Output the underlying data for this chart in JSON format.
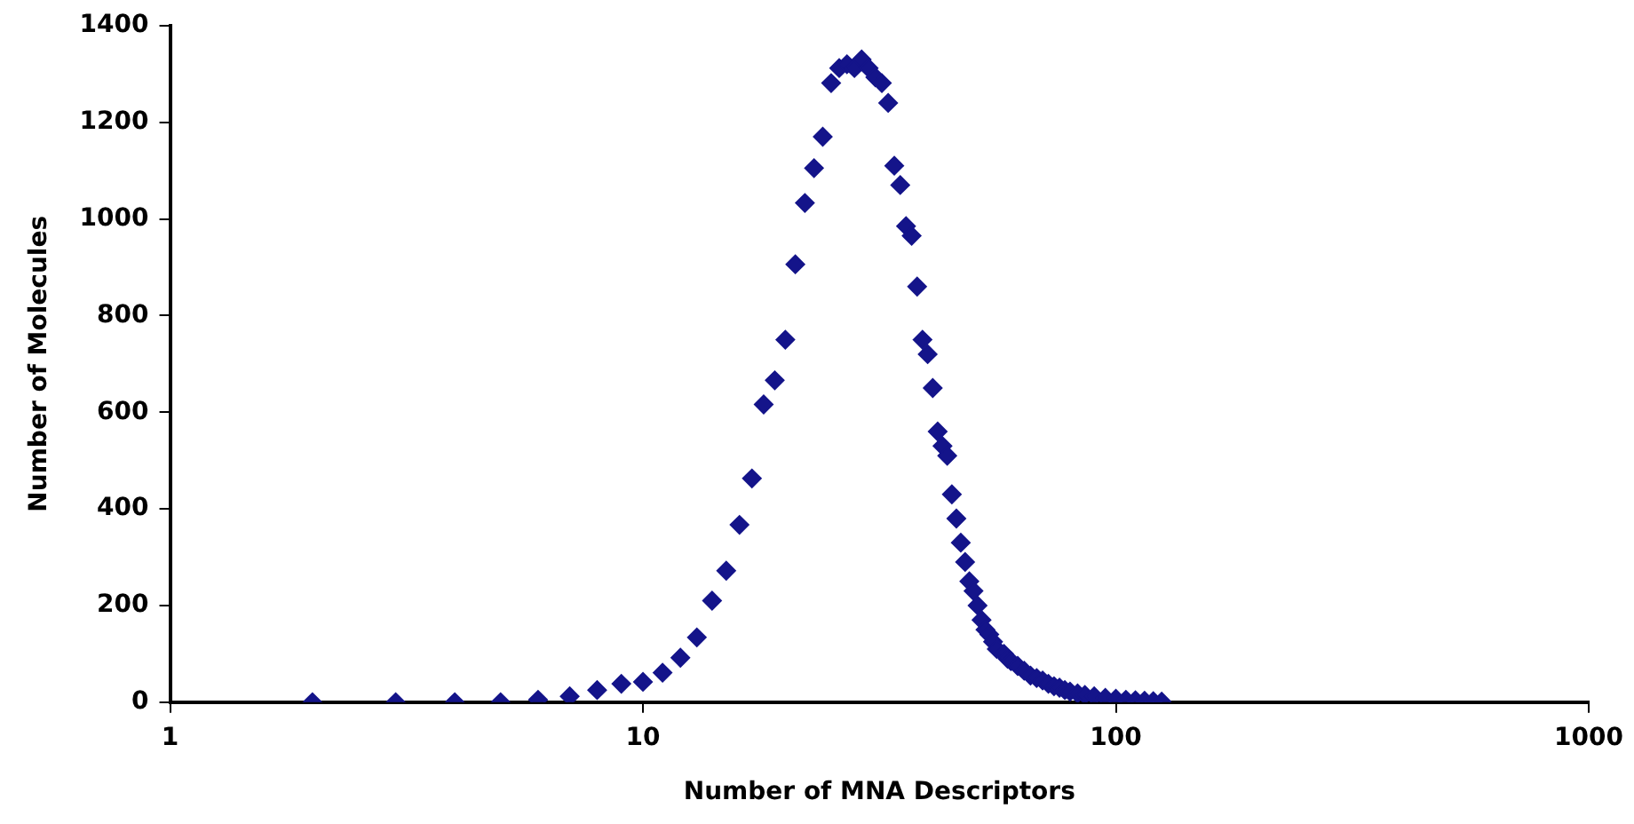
{
  "chart_data": {
    "type": "scatter",
    "xlabel": "Number of MNA Descriptors",
    "ylabel": "Number of Molecules",
    "log": "x",
    "marker": "diamond",
    "grid": false,
    "legend": false,
    "xlim": [
      1,
      1000
    ],
    "xticks": [
      1,
      10,
      100,
      1000
    ],
    "ylim": [
      0,
      1400
    ],
    "yticks": [
      0,
      200,
      400,
      600,
      800,
      1000,
      1200,
      1400
    ],
    "series": [
      {
        "color": "#14148a",
        "x": [
          2,
          3,
          4,
          5,
          6,
          7,
          8,
          9,
          10,
          11,
          12,
          13,
          14,
          15,
          16,
          17,
          18,
          19,
          20,
          21,
          22,
          23,
          24,
          25,
          26,
          27,
          28,
          29,
          30,
          31,
          32,
          33,
          34,
          35,
          36,
          37,
          38,
          39,
          40,
          41,
          42,
          43,
          44,
          45,
          46,
          47,
          48,
          49,
          50,
          51,
          52,
          53,
          54,
          55,
          56,
          58,
          59,
          60,
          62,
          64,
          66,
          68,
          70,
          72,
          74,
          76,
          78,
          80,
          83,
          86,
          90,
          95,
          100,
          105,
          110,
          115,
          120,
          125
        ],
        "values": [
          0,
          0,
          0,
          0,
          5,
          12,
          25,
          38,
          42,
          61,
          92,
          134,
          210,
          272,
          367,
          463,
          616,
          666,
          750,
          906,
          1033,
          1105,
          1170,
          1281,
          1312,
          1320,
          1312,
          1330,
          1312,
          1293,
          1281,
          1240,
          1110,
          1070,
          985,
          965,
          860,
          750,
          720,
          650,
          560,
          530,
          510,
          430,
          380,
          330,
          290,
          250,
          230,
          200,
          170,
          150,
          140,
          125,
          110,
          100,
          90,
          85,
          75,
          65,
          55,
          50,
          45,
          38,
          33,
          30,
          25,
          22,
          18,
          15,
          12,
          9,
          7,
          5,
          4,
          3,
          2,
          1
        ]
      }
    ]
  }
}
